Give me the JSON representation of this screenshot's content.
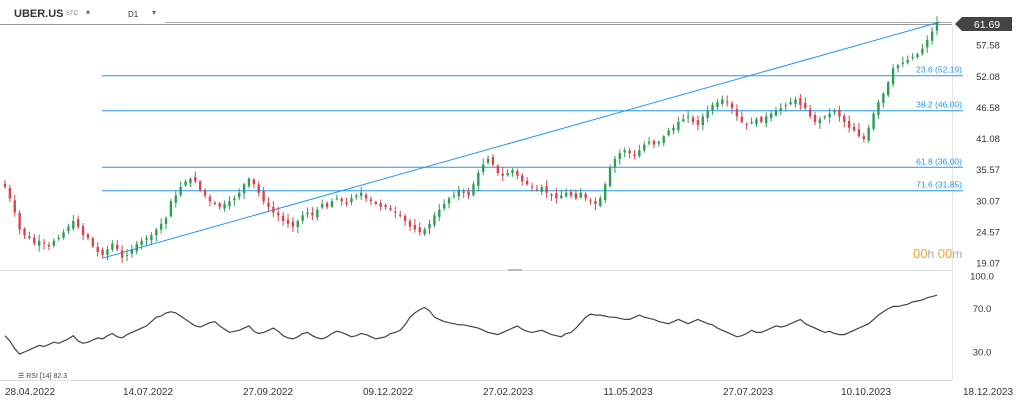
{
  "header": {
    "symbol": "UBER.US",
    "symbol_suffix": "STC",
    "timeframe": "D1"
  },
  "timer": {
    "hours": "00",
    "h_unit": "h",
    "minutes": "00",
    "m_unit": "m"
  },
  "rsi_label": "RSI [14]  82.3",
  "colors": {
    "up": "#2e9e57",
    "down": "#d64550",
    "fib": "#2196f3",
    "price_tag": "#444444",
    "line": "#444444"
  },
  "chart_data": [
    {
      "type": "candlestick",
      "y_ticks": [
        19.07,
        24.57,
        30.07,
        35.57,
        41.08,
        46.58,
        52.08,
        57.58
      ],
      "ylim": [
        19.07,
        61.69
      ],
      "last_price": "61.69",
      "x_ticks": [
        "28.04.2022",
        "14.07.2022",
        "27.09.2022",
        "09.12.2022",
        "27.02.2023",
        "11.05.2023",
        "27.07.2023",
        "10.10.2023",
        "18.12.2023"
      ],
      "fib_levels": [
        {
          "label": "23.6 (52.19)",
          "value": 52.19
        },
        {
          "label": "38.2 (46.00)",
          "value": 46.0
        },
        {
          "label": "61.8 (36.00)",
          "value": 36.0
        },
        {
          "label": "71.6 (31.85)",
          "value": 31.85
        }
      ],
      "trendline": {
        "from": 19.9,
        "to": 61.69
      },
      "closes": [
        32.5,
        30.5,
        28.0,
        25.0,
        24.0,
        23.5,
        22.5,
        23.0,
        22.5,
        22.0,
        23.0,
        23.5,
        24.5,
        25.5,
        26.5,
        25.5,
        24.0,
        23.5,
        22.0,
        21.0,
        20.5,
        21.5,
        22.5,
        21.5,
        20.0,
        20.5,
        21.5,
        22.5,
        23.0,
        23.5,
        24.0,
        25.0,
        26.0,
        27.0,
        30.0,
        31.0,
        32.5,
        33.5,
        34.0,
        33.5,
        32.0,
        31.0,
        30.0,
        29.5,
        29.0,
        29.5,
        30.0,
        30.5,
        31.5,
        33.0,
        34.0,
        33.0,
        31.5,
        30.0,
        29.0,
        28.0,
        27.5,
        26.5,
        26.0,
        25.5,
        26.5,
        27.5,
        28.0,
        27.5,
        28.5,
        29.5,
        29.0,
        30.0,
        30.5,
        30.0,
        29.5,
        30.5,
        31.0,
        31.5,
        30.5,
        30.0,
        29.5,
        29.0,
        29.0,
        28.5,
        28.0,
        27.5,
        26.5,
        25.5,
        25.0,
        24.5,
        25.0,
        26.0,
        27.5,
        28.5,
        29.5,
        30.5,
        31.0,
        32.0,
        31.5,
        31.0,
        33.0,
        35.0,
        36.5,
        37.5,
        36.5,
        35.0,
        34.5,
        35.0,
        35.5,
        34.5,
        33.5,
        33.0,
        32.5,
        32.0,
        32.5,
        31.5,
        31.0,
        30.5,
        31.0,
        31.5,
        31.0,
        30.5,
        31.5,
        30.5,
        30.0,
        29.5,
        30.5,
        33.0,
        36.0,
        37.5,
        38.5,
        39.0,
        38.5,
        38.0,
        39.0,
        40.0,
        40.5,
        40.0,
        40.5,
        41.5,
        42.5,
        43.0,
        44.0,
        44.5,
        45.0,
        44.0,
        43.5,
        45.0,
        46.0,
        47.0,
        47.5,
        48.0,
        47.5,
        46.5,
        45.0,
        44.0,
        43.5,
        44.0,
        44.5,
        44.0,
        45.0,
        45.5,
        46.0,
        46.5,
        47.0,
        47.5,
        48.0,
        47.0,
        46.5,
        45.0,
        44.0,
        44.5,
        45.0,
        45.5,
        46.0,
        45.0,
        44.0,
        43.0,
        42.5,
        41.5,
        41.0,
        43.0,
        45.5,
        47.5,
        49.0,
        51.0,
        53.5,
        54.0,
        54.5,
        55.0,
        55.5,
        56.0,
        57.0,
        58.5,
        60.0,
        61.69
      ],
      "rsi": [
        45,
        40,
        33,
        28,
        30,
        32,
        34,
        36,
        35,
        37,
        39,
        38,
        40,
        42,
        45,
        40,
        38,
        39,
        41,
        43,
        42,
        45,
        47,
        44,
        43,
        46,
        48,
        50,
        52,
        54,
        58,
        62,
        63,
        66,
        67,
        66,
        63,
        60,
        57,
        54,
        53,
        55,
        57,
        58,
        54,
        51,
        48,
        49,
        50,
        52,
        54,
        49,
        47,
        48,
        50,
        52,
        49,
        45,
        43,
        42,
        44,
        47,
        48,
        45,
        43,
        42,
        44,
        47,
        49,
        48,
        46,
        44,
        45,
        47,
        46,
        44,
        42,
        43,
        44,
        47,
        48,
        50,
        55,
        62,
        66,
        69,
        71,
        68,
        62,
        60,
        58,
        57,
        56,
        55,
        55,
        54,
        53,
        52,
        50,
        48,
        47,
        46,
        48,
        50,
        52,
        54,
        51,
        49,
        48,
        49,
        50,
        48,
        46,
        45,
        44,
        47,
        48,
        52,
        57,
        62,
        65,
        64,
        64,
        63,
        62,
        62,
        61,
        60,
        60,
        62,
        64,
        62,
        61,
        60,
        58,
        57,
        56,
        58,
        60,
        58,
        56,
        58,
        60,
        58,
        56,
        55,
        52,
        50,
        48,
        46,
        44,
        45,
        47,
        50,
        48,
        48,
        50,
        52,
        54,
        53,
        54,
        56,
        58,
        60,
        56,
        54,
        52,
        50,
        48,
        49,
        47,
        46,
        46,
        48,
        50,
        52,
        54,
        56,
        60,
        64,
        67,
        70,
        72,
        72,
        73,
        74,
        76,
        77,
        78,
        80,
        81,
        82.3
      ]
    }
  ]
}
